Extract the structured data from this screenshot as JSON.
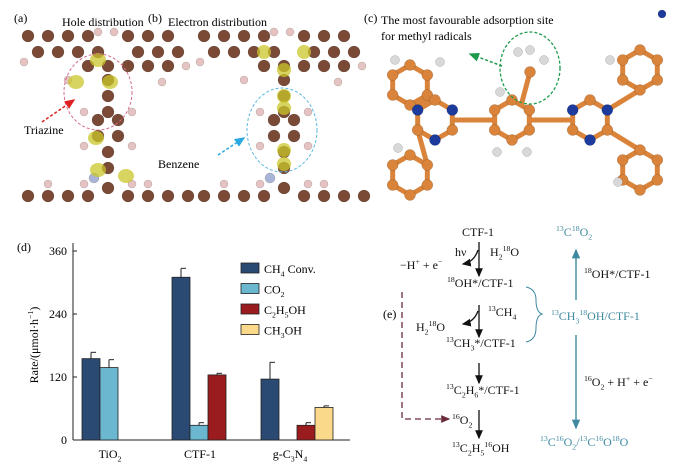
{
  "panels": {
    "a": {
      "label": "(a)",
      "title": "Hole distribution",
      "annotation": "Triazine"
    },
    "b": {
      "label": "(b)",
      "title": "Electron distribution",
      "annotation": "Benzene"
    },
    "c": {
      "label": "(c)",
      "title_line1": "The most favourable adsorption site",
      "title_line2": "for methyl radicals"
    },
    "d": {
      "label": "(d)"
    },
    "e": {
      "label": "(e)"
    }
  },
  "colors": {
    "ch4": "#2b4a73",
    "co2": "#6bb7cf",
    "c2h5oh": "#9b1c1f",
    "ch3oh": "#fbd98a",
    "carbon_a": "#7a4a36",
    "hydrogen_a": "#e6c3c3",
    "density": "#c9c62a",
    "carbon_c": "#d9843a",
    "nitrogen_c": "#1c3b9c",
    "hydrogen_c": "#d8d8d8",
    "teal": "#3f8aa0",
    "dashed_path": "#6b2a3a"
  },
  "chart_data": {
    "type": "bar",
    "categories": [
      [
        {
          "t": "TiO"
        },
        {
          "t": "2",
          "s": "sub"
        }
      ],
      [
        {
          "t": "CTF-1"
        }
      ],
      [
        {
          "t": "g-C"
        },
        {
          "t": "3",
          "s": "sub"
        },
        {
          "t": "N"
        },
        {
          "t": "4",
          "s": "sub"
        }
      ]
    ],
    "ylabel": [
      {
        "t": "Rate/(μmol·h"
      },
      {
        "t": "−1",
        "s": "sup"
      },
      {
        "t": ")"
      }
    ],
    "ylim": [
      0,
      360
    ],
    "yticks": [
      0,
      120,
      240,
      360
    ],
    "legend_position": "top-right",
    "series": [
      {
        "key": "ch4",
        "name": [
          {
            "t": "CH"
          },
          {
            "t": "4",
            "s": "sub"
          },
          {
            "t": " Conv."
          }
        ],
        "values": [
          155,
          310,
          116
        ],
        "errors": [
          12,
          17,
          32
        ]
      },
      {
        "key": "co2",
        "name": [
          {
            "t": "CO"
          },
          {
            "t": "2",
            "s": "sub"
          }
        ],
        "values": [
          138,
          28,
          null
        ],
        "errors": [
          15,
          5,
          null
        ]
      },
      {
        "key": "c2h5oh",
        "name": [
          {
            "t": "C"
          },
          {
            "t": "2",
            "s": "sub"
          },
          {
            "t": "H"
          },
          {
            "t": "5",
            "s": "sub"
          },
          {
            "t": "OH"
          }
        ],
        "values": [
          null,
          124,
          28
        ],
        "errors": [
          null,
          3,
          5
        ]
      },
      {
        "key": "ch3oh",
        "name": [
          {
            "t": "CH"
          },
          {
            "t": "3",
            "s": "sub"
          },
          {
            "t": "OH"
          }
        ],
        "values": [
          null,
          null,
          62
        ],
        "errors": [
          null,
          null,
          3
        ]
      }
    ]
  },
  "scheme": {
    "left": [
      {
        "id": "ctf1",
        "seg": [
          {
            "t": "CTF-1"
          }
        ]
      },
      {
        "id": "hv",
        "seg": [
          {
            "t": "hν"
          }
        ]
      },
      {
        "id": "h2o-a",
        "seg": [
          {
            "t": "H"
          },
          {
            "t": "2",
            "s": "sub"
          },
          {
            "t": "18",
            "s": "sup"
          },
          {
            "t": "O"
          }
        ]
      },
      {
        "id": "minus-h",
        "seg": [
          {
            "t": "−H"
          },
          {
            "t": "+",
            "s": "sup"
          },
          {
            "t": " + e"
          },
          {
            "t": "−",
            "s": "sup"
          }
        ]
      },
      {
        "id": "oh-ctf",
        "seg": [
          {
            "t": "18",
            "s": "sup"
          },
          {
            "t": "OH*/CTF-1"
          }
        ]
      },
      {
        "id": "ch4",
        "seg": [
          {
            "t": "13",
            "s": "sup"
          },
          {
            "t": "CH"
          },
          {
            "t": "4",
            "s": "sub"
          }
        ]
      },
      {
        "id": "h2o-b",
        "seg": [
          {
            "t": "H"
          },
          {
            "t": "2",
            "s": "sub"
          },
          {
            "t": "18",
            "s": "sup"
          },
          {
            "t": "O"
          }
        ]
      },
      {
        "id": "ch3-ctf",
        "seg": [
          {
            "t": "13",
            "s": "sup"
          },
          {
            "t": "CH"
          },
          {
            "t": "3",
            "s": "sub"
          },
          {
            "t": "*/CTF-1"
          }
        ]
      },
      {
        "id": "c2h6-ctf",
        "seg": [
          {
            "t": "13",
            "s": "sup"
          },
          {
            "t": "C"
          },
          {
            "t": "2",
            "s": "sub"
          },
          {
            "t": "H"
          },
          {
            "t": "6",
            "s": "sub"
          },
          {
            "t": "*/CTF-1"
          }
        ]
      },
      {
        "id": "o2",
        "seg": [
          {
            "t": "16",
            "s": "sup"
          },
          {
            "t": "O"
          },
          {
            "t": "2",
            "s": "sub"
          }
        ]
      },
      {
        "id": "c2h5oh",
        "seg": [
          {
            "t": "13",
            "s": "sup"
          },
          {
            "t": "C"
          },
          {
            "t": "2",
            "s": "sub"
          },
          {
            "t": "H"
          },
          {
            "t": "5",
            "s": "sub"
          },
          {
            "t": "16",
            "s": "sup"
          },
          {
            "t": "OH"
          }
        ]
      }
    ],
    "right": [
      {
        "id": "co2-top",
        "teal": true,
        "seg": [
          {
            "t": "13",
            "s": "sup"
          },
          {
            "t": "C"
          },
          {
            "t": "18",
            "s": "sup"
          },
          {
            "t": "O"
          },
          {
            "t": "2",
            "s": "sub"
          }
        ]
      },
      {
        "id": "oh-ctf-r",
        "seg": [
          {
            "t": "18",
            "s": "sup"
          },
          {
            "t": "OH*/CTF-1"
          }
        ]
      },
      {
        "id": "ch3oh-ctf",
        "teal": true,
        "seg": [
          {
            "t": "13",
            "s": "sup"
          },
          {
            "t": "CH"
          },
          {
            "t": "3",
            "s": "sub"
          },
          {
            "t": "18",
            "s": "sup"
          },
          {
            "t": "OH/CTF-1"
          }
        ]
      },
      {
        "id": "o2-h-e",
        "seg": [
          {
            "t": "16",
            "s": "sup"
          },
          {
            "t": "O"
          },
          {
            "t": "2",
            "s": "sub"
          },
          {
            "t": " + H"
          },
          {
            "t": "+",
            "s": "sup"
          },
          {
            "t": " + e"
          },
          {
            "t": "−",
            "s": "sup"
          }
        ]
      },
      {
        "id": "co2-bottom",
        "teal": true,
        "seg": [
          {
            "t": "13",
            "s": "sup"
          },
          {
            "t": "C"
          },
          {
            "t": "16",
            "s": "sup"
          },
          {
            "t": "O"
          },
          {
            "t": "2",
            "s": "sub"
          },
          {
            "t": "/"
          },
          {
            "t": "13",
            "s": "sup"
          },
          {
            "t": "C"
          },
          {
            "t": "16",
            "s": "sup"
          },
          {
            "t": "O"
          },
          {
            "t": "18",
            "s": "sup"
          },
          {
            "t": "O"
          }
        ]
      }
    ]
  }
}
